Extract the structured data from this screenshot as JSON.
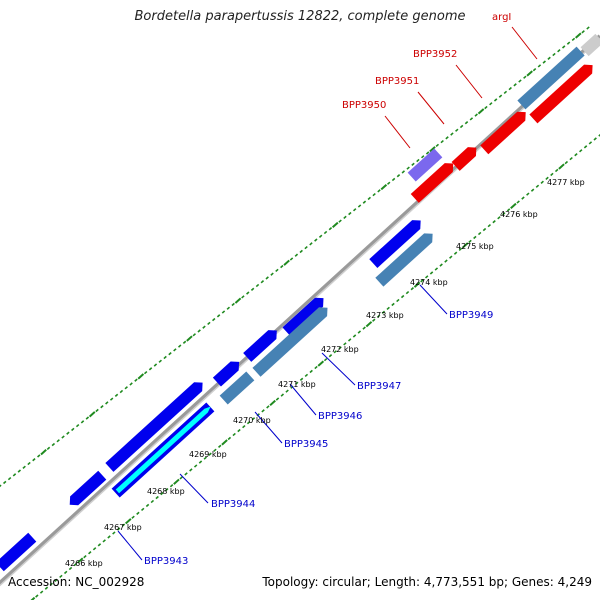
{
  "title": "Bordetella parapertussis 12822, complete genome",
  "footer": {
    "accession": "Accession: NC_002928",
    "stats": "Topology: circular; Length: 4,773,551 bp; Genes: 4,249"
  },
  "colors": {
    "backbone": "#9a9a9a",
    "tick_dots": "#1f8a1f",
    "cds_forward": "#0000ee",
    "cds_alt": "#4682b4",
    "cds_red": "#ee0000",
    "cds_purple": "#7b68ee",
    "cds_cyan": "#00ffff",
    "cds_gray": "#cccccc",
    "label_top": "#cc0000",
    "label_bottom": "#0000cc"
  },
  "tick_labels": [
    "4266 kbp",
    "4267 kbp",
    "4268 kbp",
    "4269 kbp",
    "4270 kbp",
    "4271 kbp",
    "4272 kbp",
    "4273 kbp",
    "4274 kbp",
    "4275 kbp",
    "4276 kbp",
    "4277 kbp"
  ],
  "genes_top": [
    {
      "name": "BPP3950"
    },
    {
      "name": "BPP3951"
    },
    {
      "name": "BPP3952"
    },
    {
      "name": "argI"
    }
  ],
  "genes_bottom": [
    {
      "name": "BPP3943"
    },
    {
      "name": "BPP3944"
    },
    {
      "name": "BPP3945"
    },
    {
      "name": "BPP3946"
    },
    {
      "name": "BPP3947"
    },
    {
      "name": "BPP3949"
    }
  ]
}
